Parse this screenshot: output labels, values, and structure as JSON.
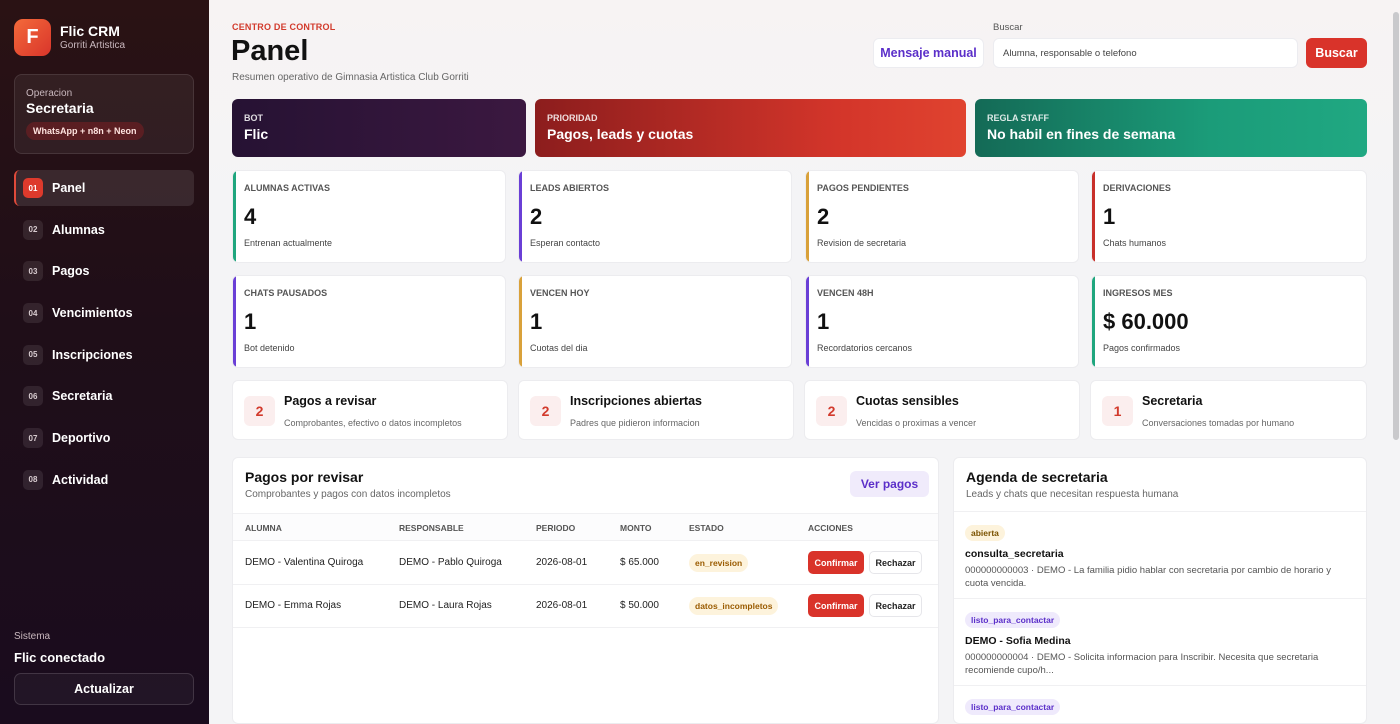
{
  "brand": {
    "logo_letter": "F",
    "name": "Flic CRM",
    "subtitle": "Gorriti Artistica"
  },
  "operation": {
    "label": "Operacion",
    "value": "Secretaria",
    "badge": "WhatsApp + n8n + Neon"
  },
  "nav": [
    {
      "num": "01",
      "label": "Panel",
      "active": true
    },
    {
      "num": "02",
      "label": "Alumnas"
    },
    {
      "num": "03",
      "label": "Pagos"
    },
    {
      "num": "04",
      "label": "Vencimientos"
    },
    {
      "num": "05",
      "label": "Inscripciones"
    },
    {
      "num": "06",
      "label": "Secretaria"
    },
    {
      "num": "07",
      "label": "Deportivo"
    },
    {
      "num": "08",
      "label": "Actividad"
    }
  ],
  "system": {
    "label": "Sistema",
    "value": "Flic conectado",
    "refresh_label": "Actualizar"
  },
  "header": {
    "eyebrow": "CENTRO DE CONTROL",
    "title": "Panel",
    "subtitle": "Resumen operativo de Gimnasia Artistica Club Gorriti",
    "manual_button": "Mensaje manual",
    "search_label": "Buscar",
    "search_placeholder": "Alumna, responsable o telefono",
    "search_button": "Buscar"
  },
  "banners": {
    "bot": {
      "label": "BOT",
      "value": "Flic"
    },
    "priority": {
      "label": "PRIORIDAD",
      "value": "Pagos, leads y cuotas"
    },
    "staff": {
      "label": "REGLA STAFF",
      "value": "No habil en fines de semana"
    }
  },
  "stats": [
    {
      "label": "ALUMNAS ACTIVAS",
      "value": "4",
      "sub": "Entrenan actualmente",
      "accent": "#1fa67e"
    },
    {
      "label": "LEADS ABIERTOS",
      "value": "2",
      "sub": "Esperan contacto",
      "accent": "#6a3fd6"
    },
    {
      "label": "PAGOS PENDIENTES",
      "value": "2",
      "sub": "Revision de secretaria",
      "accent": "#d9a13a"
    },
    {
      "label": "DERIVACIONES",
      "value": "1",
      "sub": "Chats humanos",
      "accent": "#c8302a"
    },
    {
      "label": "CHATS PAUSADOS",
      "value": "1",
      "sub": "Bot detenido",
      "accent": "#6a3fd6"
    },
    {
      "label": "VENCEN HOY",
      "value": "1",
      "sub": "Cuotas del dia",
      "accent": "#d9a13a"
    },
    {
      "label": "VENCEN 48H",
      "value": "1",
      "sub": "Recordatorios cercanos",
      "accent": "#6a3fd6"
    },
    {
      "label": "INGRESOS MES",
      "value": "$ 60.000",
      "sub": "Pagos confirmados",
      "accent": "#1fa67e"
    }
  ],
  "summaries": [
    {
      "num": "2",
      "title": "Pagos a revisar",
      "sub": "Comprobantes, efectivo o datos incompletos"
    },
    {
      "num": "2",
      "title": "Inscripciones abiertas",
      "sub": "Padres que pidieron informacion"
    },
    {
      "num": "2",
      "title": "Cuotas sensibles",
      "sub": "Vencidas o proximas a vencer"
    },
    {
      "num": "1",
      "title": "Secretaria",
      "sub": "Conversaciones tomadas por humano"
    }
  ],
  "payments": {
    "title": "Pagos por revisar",
    "subtitle": "Comprobantes y pagos con datos incompletos",
    "view_button": "Ver pagos",
    "columns": [
      "ALUMNA",
      "RESPONSABLE",
      "PERIODO",
      "MONTO",
      "ESTADO",
      "ACCIONES"
    ],
    "rows": [
      {
        "alumna": "DEMO - Valentina Quiroga",
        "responsable": "DEMO - Pablo Quiroga",
        "periodo": "2026-08-01",
        "monto": "$ 65.000",
        "estado": "en_revision",
        "confirm": "Confirmar",
        "reject": "Rechazar"
      },
      {
        "alumna": "DEMO - Emma Rojas",
        "responsable": "DEMO - Laura Rojas",
        "periodo": "2026-08-01",
        "monto": "$ 50.000",
        "estado": "datos_incompletos",
        "confirm": "Confirmar",
        "reject": "Rechazar"
      }
    ]
  },
  "agenda": {
    "title": "Agenda de secretaria",
    "subtitle": "Leads y chats que necesitan respuesta humana",
    "items": [
      {
        "tag": "abierta",
        "title": "consulta_secretaria",
        "text": "000000000003 · DEMO - La familia pidio hablar con secretaria por cambio de horario y cuota vencida."
      },
      {
        "tag": "listo_para_contactar",
        "title": "DEMO - Sofia Medina",
        "text": "000000000004 · DEMO - Solicita informacion para Inscribir. Necesita que secretaria recomiende cupo/h..."
      },
      {
        "tag": "listo_para_contactar",
        "title": "",
        "text": ""
      }
    ]
  }
}
